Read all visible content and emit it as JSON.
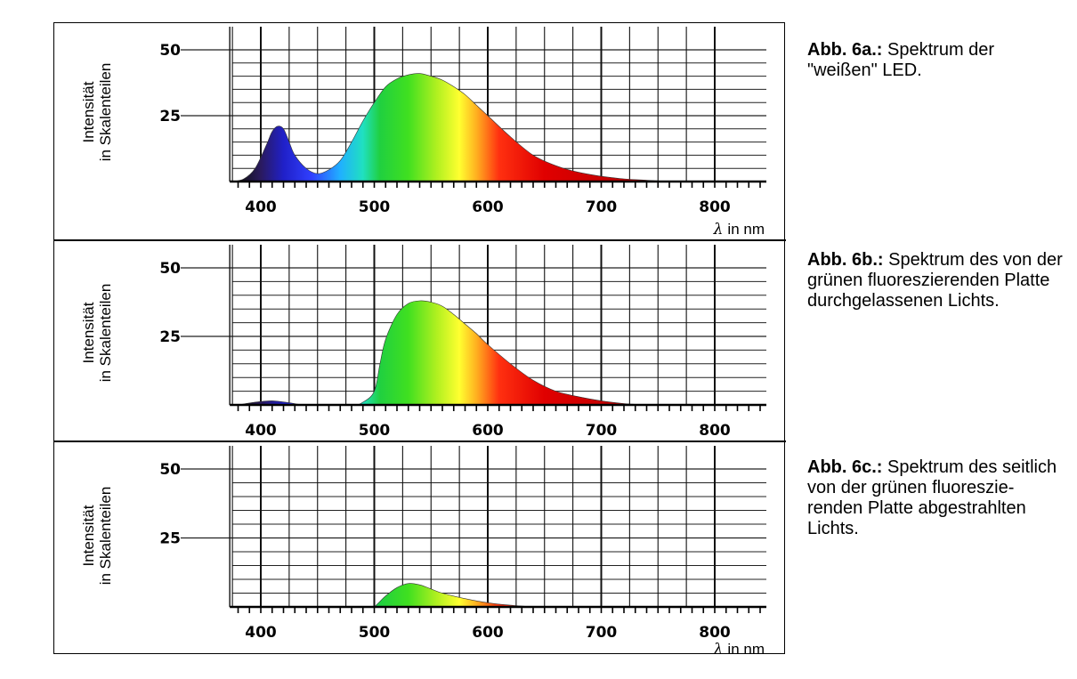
{
  "chart_data": [
    {
      "type": "area",
      "ylabel_line1": "Intensität",
      "ylabel_line2": "in Skalenteilen",
      "xunit_symbol": "λ",
      "xunit_text": "in nm",
      "xlim": [
        350,
        850
      ],
      "ylim": [
        0,
        58
      ],
      "xticks": [
        "400",
        "500",
        "600",
        "700",
        "800"
      ],
      "yticks": [
        "50",
        "25"
      ],
      "grid": true,
      "x": [
        375,
        385,
        395,
        405,
        410,
        415,
        420,
        425,
        430,
        440,
        450,
        460,
        470,
        480,
        490,
        500,
        510,
        520,
        530,
        540,
        550,
        560,
        570,
        580,
        590,
        600,
        620,
        640,
        660,
        680,
        700,
        720,
        740,
        760
      ],
      "values": [
        0,
        1,
        5,
        14,
        19,
        21,
        20,
        15,
        10,
        5,
        3,
        4.5,
        8,
        15,
        23,
        30,
        36,
        39,
        40.5,
        41,
        40,
        38.5,
        36,
        33,
        29,
        25,
        17,
        10,
        6,
        3.5,
        2,
        1,
        0.5,
        0
      ],
      "caption_bold": "Abb. 6a.:",
      "caption_text": "Spektrum der \"weißen\" LED."
    },
    {
      "type": "area",
      "ylabel_line1": "Intensität",
      "ylabel_line2": "in Skalenteilen",
      "xunit_symbol": "λ",
      "xunit_text": "in nm",
      "xlim": [
        350,
        850
      ],
      "ylim": [
        0,
        58
      ],
      "xticks": [
        "400",
        "500",
        "600",
        "700",
        "800"
      ],
      "yticks": [
        "50",
        "25"
      ],
      "grid": true,
      "x": [
        380,
        395,
        410,
        425,
        440,
        480,
        490,
        500,
        505,
        510,
        520,
        530,
        540,
        550,
        560,
        570,
        580,
        590,
        600,
        620,
        640,
        660,
        680,
        700,
        720,
        740
      ],
      "values": [
        0,
        1,
        1.5,
        0.8,
        0,
        0,
        1,
        5,
        15,
        24,
        33,
        37,
        38,
        37.5,
        36,
        33,
        29.5,
        26,
        22,
        15,
        9,
        5,
        3,
        1.5,
        0.5,
        0
      ],
      "caption_bold": "Abb. 6b.:",
      "caption_text": "Spektrum des von der grünen fluoreszierenden Platte durchgelassenen Lichts."
    },
    {
      "type": "area",
      "ylabel_line1": "Intensität",
      "ylabel_line2": "in Skalenteilen",
      "xunit_symbol": "λ",
      "xunit_text": "in nm",
      "xlim": [
        350,
        850
      ],
      "ylim": [
        0,
        58
      ],
      "xticks": [
        "400",
        "500",
        "600",
        "700",
        "800"
      ],
      "yticks": [
        "50",
        "25"
      ],
      "grid": true,
      "x": [
        500,
        505,
        510,
        520,
        530,
        540,
        550,
        560,
        580,
        600,
        620,
        640
      ],
      "values": [
        0,
        2,
        4,
        7,
        8.5,
        8,
        6.5,
        5,
        3,
        1.5,
        0.6,
        0
      ],
      "caption_bold": "Abb. 6c.:",
      "caption_text": "Spektrum des seitlich von der grünen fluoreszie-renden Platte abgestrahlten Lichts."
    }
  ]
}
